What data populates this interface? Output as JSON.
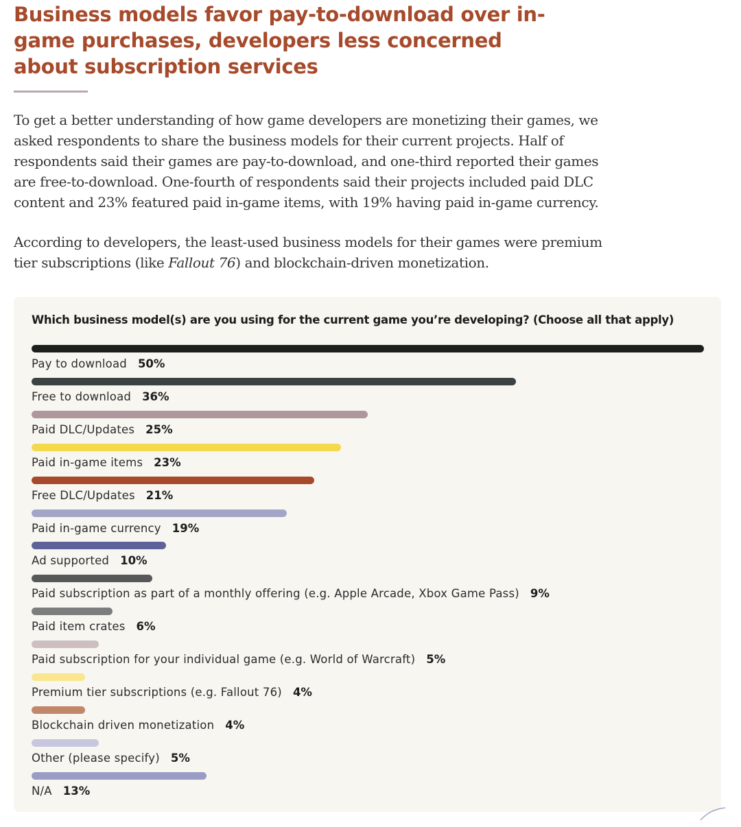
{
  "headline": "Business models favor pay-to-download over in-game purchases, developers less concerned about subscription services",
  "intro": {
    "p1": "To get a better understanding of how game developers are monetizing their games, we asked respondents to share the business models for their current projects. Half of respondents said their games are pay-to-download, and one-third reported their games are free-to-download. One-fourth of respondents said their projects included paid DLC content and 23% featured paid in-game items, with 19% having paid in-game currency.",
    "p2_before": "According to developers, the least-used business models for their games were premium tier subscriptions (like ",
    "p2_italic": "Fallout 76",
    "p2_after": ") and blockchain-driven monetization."
  },
  "chart_data": {
    "type": "bar",
    "orientation": "horizontal",
    "title": "Which business model(s) are you using for the current game you’re developing? (Choose all that apply)",
    "xlim": [
      0,
      50
    ],
    "unit": "%",
    "categories": [
      "Pay to download",
      "Free to download",
      "Paid DLC/Updates",
      "Paid in-game items",
      "Free DLC/Updates",
      "Paid in-game currency",
      "Ad supported",
      "Paid subscription as part of a monthly offering (e.g. Apple Arcade, Xbox Game Pass)",
      "Paid item crates",
      "Paid subscription for your individual game (e.g. World of Warcraft)",
      "Premium tier subscriptions (e.g. Fallout 76)",
      "Blockchain driven monetization",
      "Other (please specify)",
      "N/A"
    ],
    "values": [
      50,
      36,
      25,
      23,
      21,
      19,
      10,
      9,
      6,
      5,
      4,
      4,
      5,
      13
    ],
    "labels": [
      "50%",
      "36%",
      "25%",
      "23%",
      "21%",
      "19%",
      "10%",
      "9%",
      "6%",
      "5%",
      "4%",
      "4%",
      "5%",
      "13%"
    ],
    "colors": [
      "#1c1f1e",
      "#3c4244",
      "#ae979d",
      "#f5d94c",
      "#a64a2b",
      "#a3a5c6",
      "#5d6398",
      "#575858",
      "#7c7d7d",
      "#cdbfc1",
      "#f9e68f",
      "#c0876b",
      "#c6c6de",
      "#9a9cc5"
    ]
  }
}
